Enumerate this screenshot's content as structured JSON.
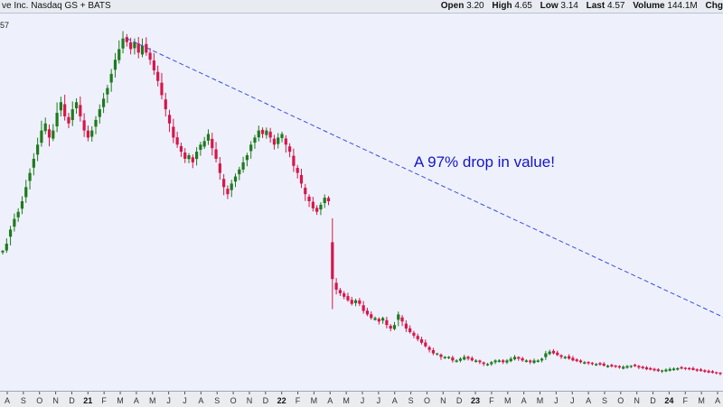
{
  "header": {
    "symbol_text": "ve Inc. Nasdaq GS + BATS",
    "open_label": "Open",
    "open_value": "3.20",
    "high_label": "High",
    "high_value": "4.65",
    "low_label": "Low",
    "low_value": "3.14",
    "last_label": "Last",
    "last_value": "4.57",
    "volume_label": "Volume",
    "volume_value": "144.1M",
    "cut_label": "Chg"
  },
  "last_price_label": "57",
  "annotation": "A 97% drop in value!",
  "colors": {
    "up": "#1e7a1e",
    "down": "#d8154b",
    "trendline": "#3a4ee0",
    "annotation": "#1515c9",
    "plot_bg": "#eef1fb"
  },
  "chart_data": {
    "type": "candlestick",
    "xlabel": "",
    "ylabel": "",
    "ylim": [
      0,
      1
    ],
    "grid": false,
    "x_ticks": [
      "A",
      "S",
      "O",
      "N",
      "D",
      "21",
      "F",
      "M",
      "A",
      "M",
      "J",
      "J",
      "A",
      "S",
      "O",
      "N",
      "D",
      "22",
      "F",
      "M",
      "A",
      "M",
      "J",
      "J",
      "A",
      "S",
      "O",
      "N",
      "D",
      "23",
      "F",
      "M",
      "A",
      "M",
      "J",
      "J",
      "A",
      "S",
      "O",
      "N",
      "D",
      "24",
      "F",
      "M",
      "A"
    ],
    "series": [
      {
        "values": [
          0.36,
          0.38,
          0.42,
          0.45,
          0.47,
          0.5,
          0.54,
          0.58,
          0.62,
          0.66,
          0.7,
          0.72,
          0.68,
          0.7,
          0.75,
          0.78,
          0.74,
          0.72,
          0.76,
          0.78,
          0.74,
          0.7,
          0.68,
          0.7,
          0.73,
          0.76,
          0.79,
          0.82,
          0.86,
          0.9,
          0.93,
          0.96,
          0.95,
          0.93,
          0.95,
          0.92,
          0.94,
          0.92,
          0.9,
          0.87,
          0.84,
          0.8,
          0.76,
          0.72,
          0.68,
          0.66,
          0.64,
          0.62,
          0.63,
          0.61,
          0.64,
          0.66,
          0.67,
          0.69,
          0.65,
          0.62,
          0.58,
          0.54,
          0.52,
          0.55,
          0.57,
          0.59,
          0.61,
          0.63,
          0.66,
          0.68,
          0.7,
          0.69,
          0.7,
          0.68,
          0.66,
          0.68,
          0.69,
          0.66,
          0.64,
          0.6,
          0.58,
          0.55,
          0.52,
          0.5,
          0.48,
          0.47,
          0.49,
          0.51,
          0.5,
          0.28,
          0.25,
          0.24,
          0.23,
          0.22,
          0.21,
          0.22,
          0.21,
          0.19,
          0.18,
          0.17,
          0.17,
          0.16,
          0.17,
          0.15,
          0.14,
          0.15,
          0.18,
          0.16,
          0.14,
          0.13,
          0.12,
          0.11,
          0.1,
          0.09,
          0.08,
          0.07,
          0.07,
          0.06,
          0.06,
          0.06,
          0.05,
          0.05,
          0.055,
          0.06,
          0.055,
          0.05,
          0.05,
          0.045,
          0.04,
          0.04,
          0.045,
          0.05,
          0.05,
          0.045,
          0.05,
          0.055,
          0.06,
          0.055,
          0.05,
          0.05,
          0.045,
          0.05,
          0.05,
          0.055,
          0.07,
          0.075,
          0.07,
          0.065,
          0.06,
          0.06,
          0.055,
          0.05,
          0.048,
          0.045,
          0.045,
          0.042,
          0.04,
          0.04,
          0.038,
          0.035,
          0.035,
          0.033,
          0.032,
          0.03,
          0.032,
          0.034,
          0.035,
          0.034,
          0.03,
          0.028,
          0.025,
          0.024,
          0.022,
          0.02,
          0.022,
          0.024,
          0.026,
          0.027,
          0.028,
          0.027,
          0.026,
          0.025,
          0.023,
          0.021,
          0.02,
          0.018,
          0.016,
          0.015,
          0.014,
          0.012
        ]
      }
    ],
    "trendline": {
      "from_index": 32,
      "from_value": 0.96,
      "to_index": 196,
      "to_value": 0.12
    }
  }
}
